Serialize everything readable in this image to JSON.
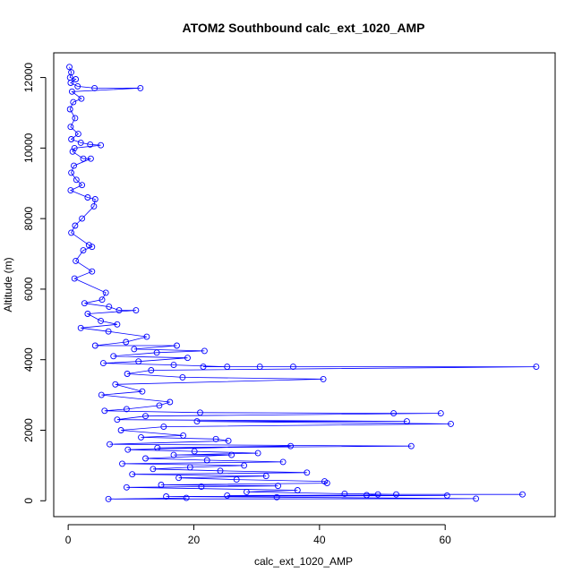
{
  "chart_data": {
    "type": "line",
    "title": "ATOM2 Southbound calc_ext_1020_AMP",
    "xlabel": "calc_ext_1020_AMP",
    "ylabel": "Altitude (m)",
    "xlim": [
      -2.3,
      77.5
    ],
    "ylim": [
      -450,
      12700
    ],
    "x_ticks": [
      0,
      20,
      40,
      60
    ],
    "y_ticks": [
      0,
      2000,
      4000,
      6000,
      8000,
      10000,
      12000
    ],
    "grid": false,
    "legend": "none",
    "colors": {
      "series": "#0000ff",
      "frame": "#000000"
    },
    "series": [
      {
        "marker": "open-circle",
        "points": [
          [
            0.2,
            12300
          ],
          [
            0.5,
            12150
          ],
          [
            0.3,
            12000
          ],
          [
            1.2,
            11950
          ],
          [
            0.4,
            11850
          ],
          [
            1.5,
            11750
          ],
          [
            4.2,
            11700
          ],
          [
            11.5,
            11700
          ],
          [
            0.6,
            11600
          ],
          [
            2.1,
            11400
          ],
          [
            0.8,
            11300
          ],
          [
            0.3,
            11100
          ],
          [
            1.1,
            10850
          ],
          [
            0.4,
            10600
          ],
          [
            1.6,
            10400
          ],
          [
            0.5,
            10250
          ],
          [
            2.0,
            10150
          ],
          [
            3.5,
            10100
          ],
          [
            5.2,
            10080
          ],
          [
            1.0,
            10000
          ],
          [
            0.7,
            9900
          ],
          [
            2.4,
            9700
          ],
          [
            3.6,
            9700
          ],
          [
            0.9,
            9500
          ],
          [
            0.5,
            9300
          ],
          [
            1.3,
            9100
          ],
          [
            2.2,
            8950
          ],
          [
            0.4,
            8800
          ],
          [
            3.1,
            8600
          ],
          [
            4.3,
            8550
          ],
          [
            4.1,
            8350
          ],
          [
            2.2,
            8000
          ],
          [
            1.1,
            7800
          ],
          [
            0.5,
            7600
          ],
          [
            3.3,
            7250
          ],
          [
            3.8,
            7200
          ],
          [
            2.4,
            7100
          ],
          [
            1.2,
            6800
          ],
          [
            3.8,
            6500
          ],
          [
            1.0,
            6300
          ],
          [
            6.0,
            5900
          ],
          [
            5.4,
            5700
          ],
          [
            2.6,
            5600
          ],
          [
            6.5,
            5500
          ],
          [
            8.1,
            5400
          ],
          [
            10.8,
            5400
          ],
          [
            3.1,
            5300
          ],
          [
            5.2,
            5100
          ],
          [
            7.8,
            5000
          ],
          [
            2.0,
            4900
          ],
          [
            6.4,
            4800
          ],
          [
            12.5,
            4650
          ],
          [
            9.2,
            4500
          ],
          [
            4.3,
            4400
          ],
          [
            17.3,
            4400
          ],
          [
            10.5,
            4300
          ],
          [
            21.7,
            4250
          ],
          [
            14.1,
            4200
          ],
          [
            7.2,
            4100
          ],
          [
            19.0,
            4050
          ],
          [
            11.2,
            3950
          ],
          [
            5.6,
            3900
          ],
          [
            16.8,
            3850
          ],
          [
            25.3,
            3800
          ],
          [
            30.5,
            3800
          ],
          [
            35.8,
            3800
          ],
          [
            21.5,
            3800
          ],
          [
            74.5,
            3800
          ],
          [
            13.2,
            3700
          ],
          [
            9.4,
            3600
          ],
          [
            18.2,
            3500
          ],
          [
            40.6,
            3450
          ],
          [
            7.5,
            3300
          ],
          [
            11.8,
            3100
          ],
          [
            5.3,
            3000
          ],
          [
            16.2,
            2800
          ],
          [
            14.5,
            2700
          ],
          [
            9.3,
            2600
          ],
          [
            5.8,
            2550
          ],
          [
            21.0,
            2500
          ],
          [
            51.8,
            2480
          ],
          [
            59.3,
            2480
          ],
          [
            12.3,
            2400
          ],
          [
            7.8,
            2300
          ],
          [
            53.9,
            2250
          ],
          [
            20.5,
            2250
          ],
          [
            60.9,
            2180
          ],
          [
            15.2,
            2100
          ],
          [
            8.4,
            2000
          ],
          [
            18.3,
            1850
          ],
          [
            11.6,
            1800
          ],
          [
            23.5,
            1750
          ],
          [
            25.5,
            1700
          ],
          [
            6.6,
            1600
          ],
          [
            54.6,
            1550
          ],
          [
            14.2,
            1500
          ],
          [
            35.4,
            1550
          ],
          [
            9.5,
            1450
          ],
          [
            20.1,
            1400
          ],
          [
            30.2,
            1350
          ],
          [
            16.8,
            1300
          ],
          [
            26.0,
            1300
          ],
          [
            12.3,
            1200
          ],
          [
            22.1,
            1150
          ],
          [
            34.2,
            1100
          ],
          [
            8.6,
            1050
          ],
          [
            28.0,
            1000
          ],
          [
            19.4,
            950
          ],
          [
            13.5,
            900
          ],
          [
            24.2,
            850
          ],
          [
            38.0,
            800
          ],
          [
            10.2,
            750
          ],
          [
            31.5,
            700
          ],
          [
            17.6,
            650
          ],
          [
            26.8,
            600
          ],
          [
            40.8,
            550
          ],
          [
            41.2,
            500
          ],
          [
            14.8,
            450
          ],
          [
            33.4,
            420
          ],
          [
            21.2,
            400
          ],
          [
            9.3,
            380
          ],
          [
            36.5,
            300
          ],
          [
            28.4,
            250
          ],
          [
            44.0,
            200
          ],
          [
            52.2,
            180
          ],
          [
            72.3,
            180
          ],
          [
            49.3,
            180
          ],
          [
            47.5,
            160
          ],
          [
            25.3,
            150
          ],
          [
            60.3,
            150
          ],
          [
            15.6,
            120
          ],
          [
            33.2,
            100
          ],
          [
            64.9,
            60
          ],
          [
            6.4,
            50
          ],
          [
            18.8,
            80
          ]
        ]
      }
    ]
  }
}
